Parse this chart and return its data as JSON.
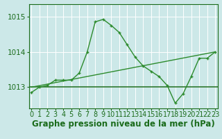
{
  "xlabel": "Graphe pression niveau de la mer (hPa)",
  "bg_color": "#cce8e8",
  "grid_color": "#ffffff",
  "dark_green": "#1a6b1a",
  "mid_green": "#2d8b2d",
  "x_ticks": [
    0,
    1,
    2,
    3,
    4,
    5,
    6,
    7,
    8,
    9,
    10,
    11,
    12,
    13,
    14,
    15,
    16,
    17,
    18,
    19,
    20,
    21,
    22,
    23
  ],
  "y_ticks": [
    1013,
    1014,
    1015
  ],
  "ylim": [
    1012.4,
    1015.35
  ],
  "xlim": [
    -0.3,
    23.3
  ],
  "flat_line_y": 1013.0,
  "rising_line_x": [
    0,
    23
  ],
  "rising_line_y": [
    1013.0,
    1014.0
  ],
  "curve_x": [
    0,
    1,
    2,
    3,
    4,
    5,
    6,
    7,
    8,
    9,
    10,
    11,
    12,
    13,
    14,
    15,
    16,
    17,
    18,
    19,
    20,
    21,
    22,
    23
  ],
  "curve_y": [
    1012.85,
    1013.0,
    1013.05,
    1013.2,
    1013.2,
    1013.2,
    1013.4,
    1014.0,
    1014.85,
    1014.92,
    1014.75,
    1014.55,
    1014.2,
    1013.85,
    1013.6,
    1013.45,
    1013.3,
    1013.05,
    1012.55,
    1012.82,
    1013.3,
    1013.82,
    1013.82,
    1014.0
  ],
  "text_color": "#1a6b1a",
  "xlabel_fontsize": 8.5,
  "tick_fontsize": 7.0
}
